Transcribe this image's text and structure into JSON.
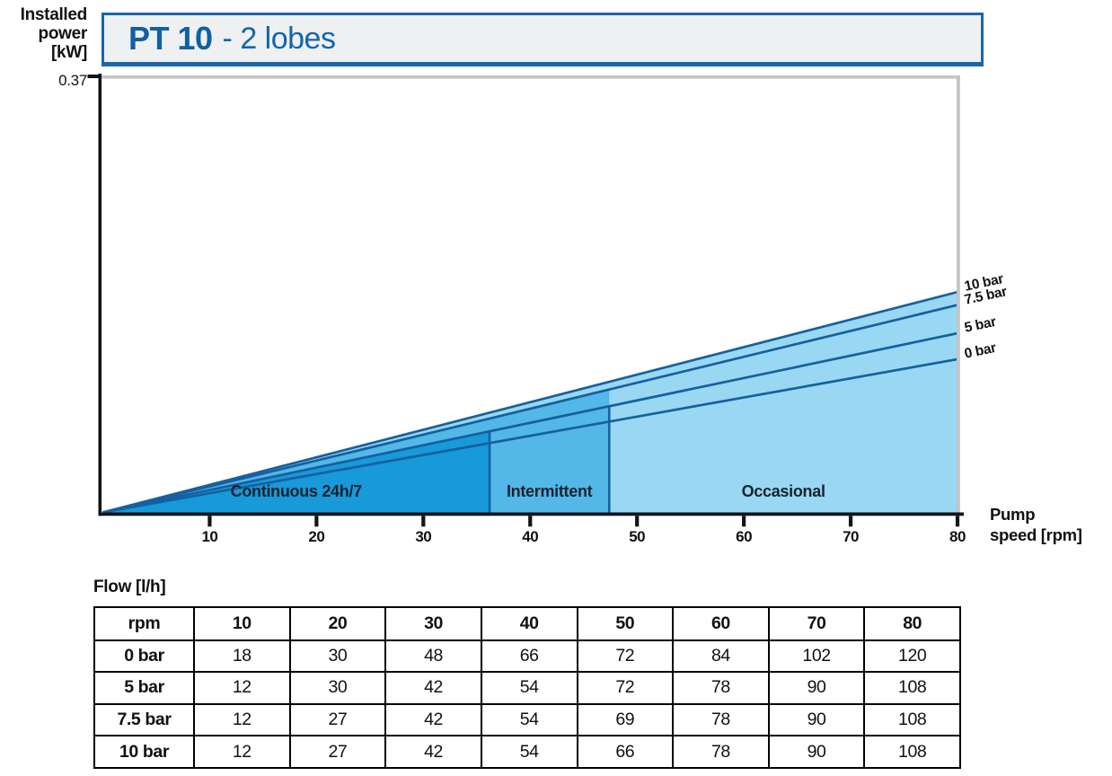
{
  "header": {
    "model": "PT 10",
    "variant": "- 2 lobes"
  },
  "y_axis": {
    "line1": "Installed",
    "line2": "power",
    "line3": "[kW]",
    "max_label": "0.37"
  },
  "x_axis": {
    "line1": "Pump",
    "line2": "speed [rpm]"
  },
  "chart_data": {
    "type": "area",
    "title": "PT 10 - 2 lobes",
    "xlabel": "Pump speed [rpm]",
    "ylabel": "Installed power [kW]",
    "xlim": [
      0,
      80
    ],
    "ylim": [
      0,
      0.37
    ],
    "x_ticks": [
      10,
      20,
      30,
      40,
      50,
      60,
      70,
      80
    ],
    "y_tick_labels": [
      "0.37"
    ],
    "grid": false,
    "lines": [
      {
        "label": "10 bar",
        "start_rpm": 0,
        "start_kw": 0,
        "end_rpm": 80,
        "end_kw": 0.187
      },
      {
        "label": "7.5 bar",
        "start_rpm": 0,
        "start_kw": 0,
        "end_rpm": 80,
        "end_kw": 0.176
      },
      {
        "label": "5 bar",
        "start_rpm": 0,
        "start_kw": 0,
        "end_rpm": 80,
        "end_kw": 0.152
      },
      {
        "label": "0 bar",
        "start_rpm": 0,
        "start_kw": 0,
        "end_rpm": 80,
        "end_kw": 0.13
      }
    ],
    "zones": [
      {
        "label": "Continuous 24h/7",
        "rpm_start": 0,
        "rpm_end": 36.2,
        "fill_line_index": 2,
        "color": "#1899d9"
      },
      {
        "label": "Intermittent",
        "rpm_start": 36.2,
        "rpm_end": 47.4,
        "fill_line_index": 1,
        "color": "#53b7e8"
      },
      {
        "label": "Occasional",
        "rpm_start": 47.4,
        "rpm_end": 80,
        "fill_line_index": 0,
        "color": "#9ad7f2"
      }
    ],
    "flow_table": {
      "title": "Flow [l/h]",
      "col_headers": [
        "rpm",
        "10",
        "20",
        "30",
        "40",
        "50",
        "60",
        "70",
        "80"
      ],
      "rows": [
        {
          "label": "0 bar",
          "values": [
            18,
            30,
            48,
            66,
            72,
            84,
            102,
            120
          ]
        },
        {
          "label": "5 bar",
          "values": [
            12,
            30,
            42,
            54,
            72,
            78,
            90,
            108
          ]
        },
        {
          "label": "7.5 bar",
          "values": [
            12,
            27,
            42,
            54,
            69,
            78,
            90,
            108
          ]
        },
        {
          "label": "10 bar",
          "values": [
            12,
            27,
            42,
            54,
            66,
            78,
            90,
            108
          ]
        }
      ]
    }
  },
  "colors": {
    "title_blue": "#1060a4",
    "title_border_blue": "#1a66a8",
    "title_bg": "#eef0f1",
    "line_stroke": "#15609f",
    "zone_dark": "#1899d9",
    "zone_medium": "#53b7e8",
    "zone_light": "#9ad7f2",
    "axis_black": "#121518",
    "frame_grey": "#c3c4c5",
    "text_black": "#111111"
  }
}
